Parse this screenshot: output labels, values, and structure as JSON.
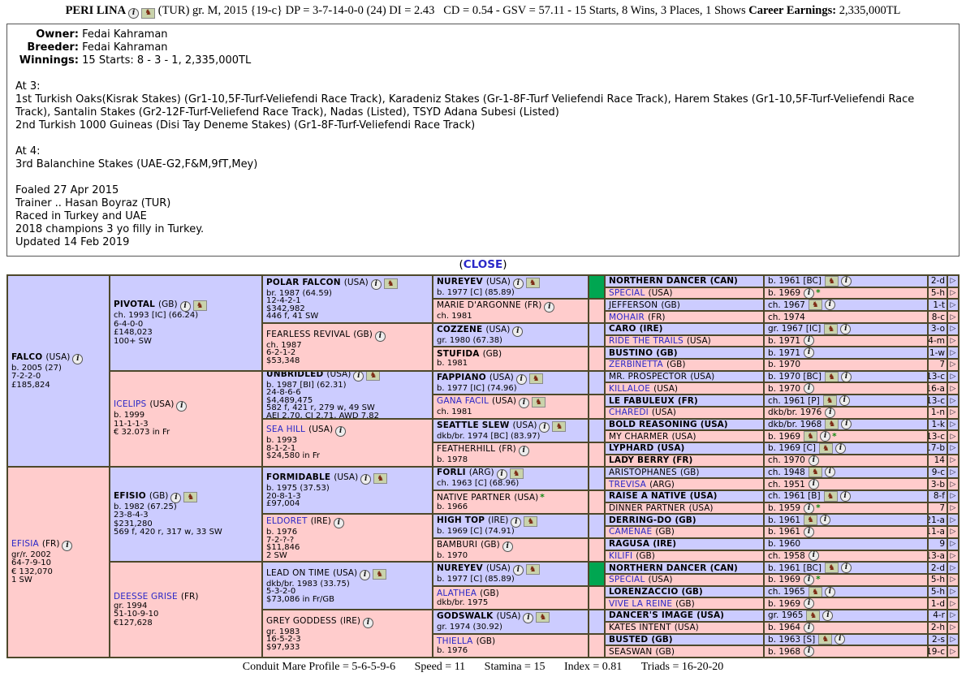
{
  "colors": {
    "male": "#ccccff",
    "female": "#ffcccc",
    "duplicate": "#00a651",
    "line": "#4d482a",
    "link": "#2a28c8"
  },
  "header": {
    "name": "PERI LINA",
    "mid": "(TUR) gr. M, 2015 {19-c} DP = 3-7-14-0-0 (24) DI = 2.43   CD = 0.54 - GSV = 57.11 - 15 Starts, 8 Wins, 3 Places, 1 Shows",
    "earnings_label": "Career Earnings:",
    "earnings_value": "2,335,000TL"
  },
  "info_box": {
    "owner_label": "Owner:",
    "owner": "Fedai Kahraman",
    "breeder_label": "Breeder:",
    "breeder": "Fedai Kahraman",
    "winnings_label": "Winnings:",
    "winnings": "15 Starts: 8 - 3 - 1, 2,335,000TL",
    "at3_heading": "At 3:",
    "at3_line1": "1st Turkish Oaks(Kisrak Stakes) (Gr1-10,5F-Turf-Veliefendi Race Track), Karadeniz Stakes (Gr-1-8F-Turf Veliefendi Race Track), Harem Stakes (Gr1-10,5F-Turf-Veliefendi Race Track), Santalin Stakes (Gr2-12F-Turf-Veliefend Race Track), Nadas (Listed), TSYD Adana Subesi (Listed)",
    "at3_line2": "2nd Turkish 1000 Guineas (Disi Tay Deneme Stakes) (Gr1-8F-Turf-Veliefendi Race Track)",
    "at4_heading": "At 4:",
    "at4_line1": "3rd Balanchine Stakes (UAE-G2,F&M,9fT,Mey)",
    "foaled": "Foaled 27 Apr 2015",
    "trainer": "Trainer .. Hasan Boyraz (TUR)",
    "raced": "Raced in Turkey and UAE",
    "champion": "2018 champions 3 yo filly in Turkey.",
    "updated": "Updated 14 Feb 2019"
  },
  "close_link": {
    "open": "(",
    "label": "CLOSE",
    "close": ")"
  },
  "pedigree": {
    "gen1": [
      {
        "name": "FALCO",
        "country": "(USA)",
        "style": "bold",
        "sex": "m",
        "info": true,
        "horse": false,
        "lines": [
          "b. 2005 (27)",
          "7-2-2-0",
          "£185,824"
        ]
      },
      {
        "name": "EFISIA",
        "country": "(FR)",
        "style": "link",
        "sex": "f",
        "info": true,
        "horse": false,
        "lines": [
          "gr/r. 2002",
          "64-7-9-10",
          "€ 132,070",
          "1 SW"
        ]
      }
    ],
    "gen2": [
      {
        "name": "PIVOTAL",
        "country": "(GB)",
        "style": "bold",
        "sex": "m",
        "info": true,
        "horse": true,
        "lines": [
          "ch. 1993 [IC] (66.24)",
          "6-4-0-0",
          "£148,023",
          "100+ SW"
        ]
      },
      {
        "name": "ICELIPS",
        "country": "(USA)",
        "style": "link",
        "sex": "f",
        "info": true,
        "horse": false,
        "lines": [
          "b. 1999",
          "11-1-1-3",
          "€ 32.073 in Fr"
        ]
      },
      {
        "name": "EFISIO",
        "country": "(GB)",
        "style": "bold",
        "sex": "m",
        "info": true,
        "horse": true,
        "lines": [
          "b. 1982 (67.25)",
          "23-8-4-3",
          "$231,280",
          "569 f, 420 r, 317 w, 33 SW"
        ]
      },
      {
        "name": "DEESSE GRISE",
        "country": "(FR)",
        "style": "link",
        "sex": "f",
        "info": false,
        "horse": false,
        "lines": [
          "gr. 1994",
          "51-10-9-10",
          "€127,628"
        ]
      }
    ],
    "gen3": [
      {
        "name": "POLAR FALCON",
        "country": "(USA)",
        "style": "bold",
        "sex": "m",
        "info": true,
        "horse": true,
        "lines": [
          "br. 1987 (64.59)",
          "12-4-2-1",
          "$342,982",
          "446 f, 41 SW"
        ]
      },
      {
        "name": "FEARLESS REVIVAL",
        "country": "(GB)",
        "style": "plain",
        "sex": "f",
        "info": true,
        "horse": false,
        "lines": [
          "ch. 1987",
          "6-2-1-2",
          "$53,348"
        ]
      },
      {
        "name": "UNBRIDLED",
        "country": "(USA)",
        "style": "bold",
        "sex": "m",
        "info": true,
        "horse": true,
        "lines": [
          "b. 1987 [BI] (62.31)",
          "24-8-6-6",
          "$4,489,475",
          "582 f, 421 r, 279 w, 49 SW",
          "AEI 2.70, CI 2.71, AWD 7.82"
        ]
      },
      {
        "name": "SEA HILL",
        "country": "(USA)",
        "style": "link",
        "sex": "f",
        "info": true,
        "horse": false,
        "lines": [
          "b. 1993",
          "8-1-2-1",
          "$24,580 in Fr"
        ]
      },
      {
        "name": "FORMIDABLE",
        "country": "(USA)",
        "style": "bold",
        "sex": "m",
        "info": true,
        "horse": true,
        "lines": [
          "b. 1975 (37.53)",
          "20-8-1-3",
          "£97,004"
        ]
      },
      {
        "name": "ELDORET",
        "country": "(IRE)",
        "style": "link",
        "sex": "f",
        "info": true,
        "horse": false,
        "lines": [
          "b. 1976",
          "7-2-?-?",
          "$11,846",
          "2 SW"
        ]
      },
      {
        "name": "LEAD ON TIME",
        "country": "(USA)",
        "style": "plain",
        "sex": "m",
        "info": true,
        "horse": true,
        "lines": [
          "dkb/br. 1983 (33.75)",
          "5-3-2-0",
          "$73,086 in Fr/GB"
        ]
      },
      {
        "name": "GREY GODDESS",
        "country": "(IRE)",
        "style": "plain",
        "sex": "f",
        "info": true,
        "horse": false,
        "lines": [
          "gr. 1983",
          "16-5-2-3",
          "$97,933"
        ]
      }
    ],
    "gen4": [
      {
        "name": "NUREYEV",
        "country": "(USA)",
        "style": "bold",
        "sex": "m",
        "info": true,
        "horse": true,
        "sw": "green",
        "lines": [
          "b. 1977 [C] (85.89)"
        ]
      },
      {
        "name": "MARIE D'ARGONNE",
        "country": "(FR)",
        "style": "plain",
        "sex": "f",
        "info": true,
        "horse": false,
        "sw": "f",
        "lines": [
          "ch. 1981"
        ]
      },
      {
        "name": "COZZENE",
        "country": "(USA)",
        "style": "bold",
        "sex": "m",
        "info": true,
        "horse": false,
        "sw": "m",
        "lines": [
          "gr. 1980 (67.38)"
        ]
      },
      {
        "name": "STUFIDA",
        "country": "(GB)",
        "style": "bold",
        "sex": "f",
        "info": false,
        "horse": false,
        "sw": "f",
        "lines": [
          "b. 1981"
        ]
      },
      {
        "name": "FAPPIANO",
        "country": "(USA)",
        "style": "bold",
        "sex": "m",
        "info": true,
        "horse": true,
        "sw": "m",
        "lines": [
          "b. 1977 [IC] (74.96)"
        ]
      },
      {
        "name": "GANA FACIL",
        "country": "(USA)",
        "style": "link",
        "sex": "f",
        "info": true,
        "horse": true,
        "sw": "f",
        "lines": [
          "ch. 1981"
        ]
      },
      {
        "name": "SEATTLE SLEW",
        "country": "(USA)",
        "style": "bold",
        "sex": "m",
        "info": true,
        "horse": true,
        "sw": "m",
        "lines": [
          "dkb/br. 1974 [BC] (83.97)"
        ]
      },
      {
        "name": "FEATHERHILL",
        "country": "(FR)",
        "style": "plain",
        "sex": "f",
        "info": true,
        "horse": false,
        "sw": "f",
        "lines": [
          "b. 1978"
        ]
      },
      {
        "name": "FORLI",
        "country": "(ARG)",
        "style": "bold",
        "sex": "m",
        "info": true,
        "horse": true,
        "sw": "m",
        "lines": [
          "ch. 1963 [C] (68.96)"
        ]
      },
      {
        "name": "NATIVE PARTNER",
        "country": "(USA)",
        "style": "plain",
        "sex": "f",
        "info": false,
        "horse": false,
        "name_star": true,
        "sw": "f",
        "lines": [
          "b. 1966"
        ]
      },
      {
        "name": "HIGH TOP",
        "country": "(IRE)",
        "style": "bold",
        "sex": "m",
        "info": true,
        "horse": true,
        "sw": "m",
        "lines": [
          "b. 1969 [C] (74.91)"
        ]
      },
      {
        "name": "BAMBURI",
        "country": "(GB)",
        "style": "plain",
        "sex": "f",
        "info": true,
        "horse": false,
        "sw": "f",
        "lines": [
          "b. 1970"
        ]
      },
      {
        "name": "NUREYEV",
        "country": "(USA)",
        "style": "bold",
        "sex": "m",
        "info": true,
        "horse": true,
        "sw": "green",
        "lines": [
          "b. 1977 [C] (85.89)"
        ]
      },
      {
        "name": "ALATHEA",
        "country": "(GB)",
        "style": "link",
        "sex": "f",
        "info": false,
        "horse": false,
        "sw": "f",
        "lines": [
          "dkb/br. 1975"
        ]
      },
      {
        "name": "GODSWALK",
        "country": "(USA)",
        "style": "bold",
        "sex": "m",
        "info": true,
        "horse": true,
        "sw": "m",
        "lines": [
          "gr. 1974 (30.92)"
        ]
      },
      {
        "name": "THIELLA",
        "country": "(GB)",
        "style": "link",
        "sex": "f",
        "info": false,
        "horse": false,
        "sw": "f",
        "lines": [
          "b. 1976"
        ]
      }
    ],
    "gen5": [
      {
        "name": "NORTHERN DANCER",
        "country": "(CAN)",
        "style": "bold",
        "sex": "m",
        "info": "b. 1961 [BC]",
        "horse": true,
        "info_icon": true,
        "star": false,
        "family": "2-d"
      },
      {
        "name": "SPECIAL",
        "country": "(USA)",
        "style": "link",
        "sex": "f",
        "info": "b. 1969",
        "horse": false,
        "info_icon": true,
        "star": true,
        "family": "5-h"
      },
      {
        "name": "JEFFERSON",
        "country": "(GB)",
        "style": "plain",
        "sex": "m",
        "info": "ch. 1967",
        "horse": true,
        "info_icon": true,
        "star": false,
        "family": "1-t"
      },
      {
        "name": "MOHAIR",
        "country": "(FR)",
        "style": "link",
        "sex": "f",
        "info": "ch. 1974",
        "horse": false,
        "info_icon": false,
        "star": false,
        "family": "8-c"
      },
      {
        "name": "CARO",
        "country": "(IRE)",
        "style": "bold",
        "sex": "m",
        "info": "gr. 1967 [IC]",
        "horse": true,
        "info_icon": true,
        "star": false,
        "family": "3-o"
      },
      {
        "name": "RIDE THE TRAILS",
        "country": "(USA)",
        "style": "link",
        "sex": "f",
        "info": "b. 1971",
        "horse": false,
        "info_icon": true,
        "star": false,
        "family": "4-m"
      },
      {
        "name": "BUSTINO",
        "country": "(GB)",
        "style": "bold",
        "sex": "m",
        "info": "b. 1971",
        "horse": false,
        "info_icon": true,
        "star": false,
        "family": "1-w"
      },
      {
        "name": "ZERBINETTA",
        "country": "(GB)",
        "style": "link",
        "sex": "f",
        "info": "b. 1970",
        "horse": false,
        "info_icon": false,
        "star": false,
        "family": "7"
      },
      {
        "name": "MR. PROSPECTOR",
        "country": "(USA)",
        "style": "plain",
        "sex": "m",
        "info": "b. 1970 [BC]",
        "horse": true,
        "info_icon": true,
        "star": false,
        "family": "13-c"
      },
      {
        "name": "KILLALOE",
        "country": "(USA)",
        "style": "link",
        "sex": "f",
        "info": "b. 1970",
        "horse": false,
        "info_icon": true,
        "star": false,
        "family": "16-a"
      },
      {
        "name": "LE FABULEUX",
        "country": "(FR)",
        "style": "bold",
        "sex": "m",
        "info": "ch. 1961 [P]",
        "horse": true,
        "info_icon": true,
        "star": false,
        "family": "13-c"
      },
      {
        "name": "CHAREDI",
        "country": "(USA)",
        "style": "link",
        "sex": "f",
        "info": "dkb/br. 1976",
        "horse": false,
        "info_icon": true,
        "star": false,
        "family": "1-n"
      },
      {
        "name": "BOLD REASONING",
        "country": "(USA)",
        "style": "bold",
        "sex": "m",
        "info": "dkb/br. 1968",
        "horse": true,
        "info_icon": true,
        "star": false,
        "family": "1-k"
      },
      {
        "name": "MY CHARMER",
        "country": "(USA)",
        "style": "plain",
        "sex": "f",
        "info": "b. 1969",
        "horse": true,
        "info_icon": true,
        "star": true,
        "family": "13-c"
      },
      {
        "name": "LYPHARD",
        "country": "(USA)",
        "style": "bold",
        "sex": "m",
        "info": "b. 1969 [C]",
        "horse": true,
        "info_icon": true,
        "star": false,
        "family": "17-b"
      },
      {
        "name": "LADY BERRY",
        "country": "(FR)",
        "style": "bold",
        "sex": "f",
        "info": "ch. 1970",
        "horse": false,
        "info_icon": true,
        "star": false,
        "family": "14"
      },
      {
        "name": "ARISTOPHANES",
        "country": "(GB)",
        "style": "plain",
        "sex": "m",
        "info": "ch. 1948",
        "horse": true,
        "info_icon": true,
        "star": false,
        "family": "9-c"
      },
      {
        "name": "TREVISA",
        "country": "(ARG)",
        "style": "link",
        "sex": "f",
        "info": "ch. 1951",
        "horse": false,
        "info_icon": true,
        "star": false,
        "family": "3-b"
      },
      {
        "name": "RAISE A NATIVE",
        "country": "(USA)",
        "style": "bold",
        "sex": "m",
        "info": "ch. 1961 [B]",
        "horse": true,
        "info_icon": true,
        "star": false,
        "family": "8-f"
      },
      {
        "name": "DINNER PARTNER",
        "country": "(USA)",
        "style": "plain",
        "sex": "f",
        "info": "b. 1959",
        "horse": false,
        "info_icon": true,
        "star": true,
        "family": "7"
      },
      {
        "name": "DERRING-DO",
        "country": "(GB)",
        "style": "bold",
        "sex": "m",
        "info": "b. 1961",
        "horse": true,
        "info_icon": true,
        "star": false,
        "family": "21-a"
      },
      {
        "name": "CAMENAE",
        "country": "(GB)",
        "style": "link",
        "sex": "f",
        "info": "b. 1961",
        "horse": false,
        "info_icon": true,
        "star": false,
        "family": "11-a"
      },
      {
        "name": "RAGUSA",
        "country": "(IRE)",
        "style": "bold",
        "sex": "m",
        "info": "b. 1960",
        "horse": false,
        "info_icon": false,
        "star": false,
        "family": "9"
      },
      {
        "name": "KILIFI",
        "country": "(GB)",
        "style": "link",
        "sex": "f",
        "info": "ch. 1958",
        "horse": false,
        "info_icon": true,
        "star": false,
        "family": "13-a"
      },
      {
        "name": "NORTHERN DANCER",
        "country": "(CAN)",
        "style": "bold",
        "sex": "m",
        "info": "b. 1961 [BC]",
        "horse": true,
        "info_icon": true,
        "star": false,
        "family": "2-d"
      },
      {
        "name": "SPECIAL",
        "country": "(USA)",
        "style": "link",
        "sex": "f",
        "info": "b. 1969",
        "horse": false,
        "info_icon": true,
        "star": true,
        "family": "5-h"
      },
      {
        "name": "LORENZACCIO",
        "country": "(GB)",
        "style": "bold",
        "sex": "m",
        "info": "ch. 1965",
        "horse": true,
        "info_icon": true,
        "star": false,
        "family": "5-h"
      },
      {
        "name": "VIVE LA REINE",
        "country": "(GB)",
        "style": "link",
        "sex": "f",
        "info": "b. 1969",
        "horse": false,
        "info_icon": true,
        "star": false,
        "family": "1-d"
      },
      {
        "name": "DANCER'S IMAGE",
        "country": "(USA)",
        "style": "bold",
        "sex": "m",
        "info": "gr. 1965",
        "horse": true,
        "info_icon": true,
        "star": false,
        "family": "4-r"
      },
      {
        "name": "KATES INTENT",
        "country": "(USA)",
        "style": "plain",
        "sex": "f",
        "info": "b. 1964",
        "horse": false,
        "info_icon": true,
        "star": false,
        "family": "2-h"
      },
      {
        "name": "BUSTED",
        "country": "(GB)",
        "style": "bold",
        "sex": "m",
        "info": "b. 1963 [S]",
        "horse": true,
        "info_icon": true,
        "star": false,
        "family": "2-s"
      },
      {
        "name": "SEASWAN",
        "country": "(GB)",
        "style": "plain",
        "sex": "f",
        "info": "b. 1968",
        "horse": false,
        "info_icon": true,
        "star": false,
        "family": "19-c"
      }
    ]
  },
  "footer": {
    "profile": "Conduit Mare Profile = 5-6-5-9-6",
    "speed": "Speed = 11",
    "stamina": "Stamina = 15",
    "index": "Index = 0.81",
    "triads": "Triads = 16-20-20"
  }
}
